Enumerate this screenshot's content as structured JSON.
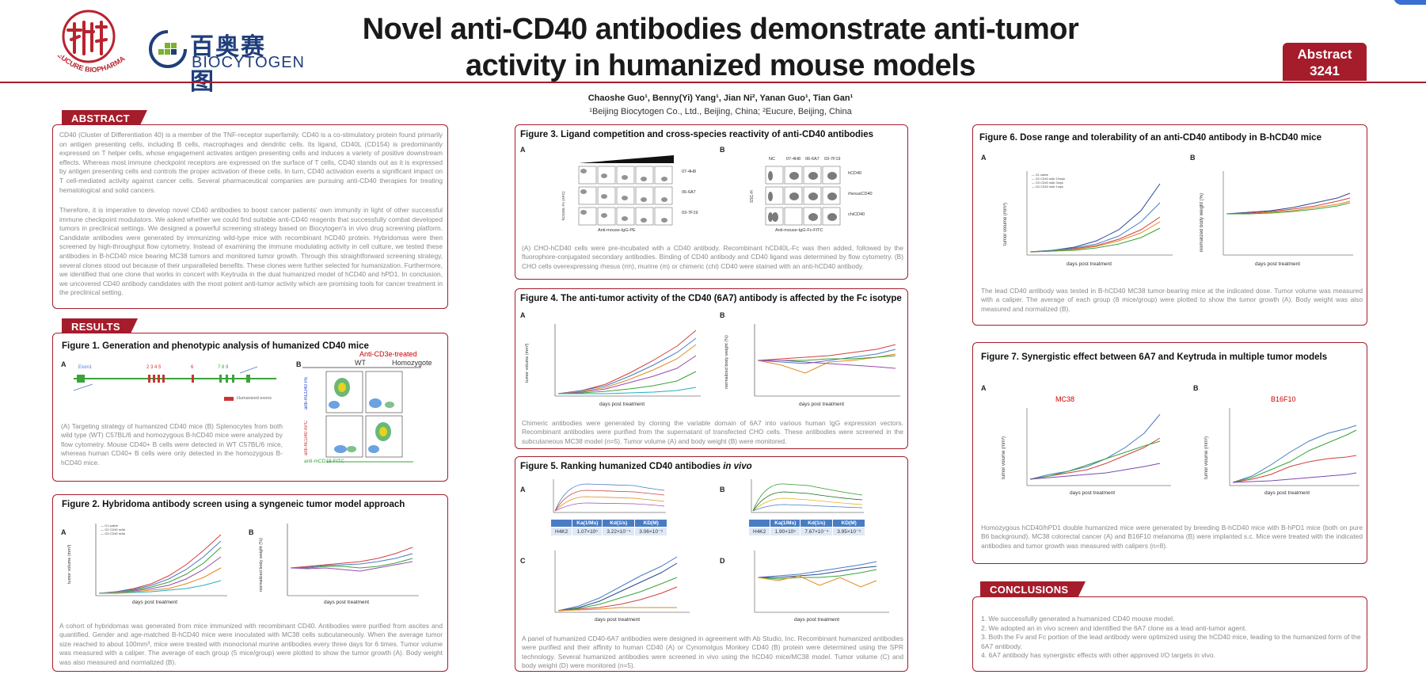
{
  "header": {
    "eucure_text": "EUCURE BIOPHARMA",
    "biocytogen_cn": "百奥赛图",
    "biocytogen_en": "BIOCYTOGEN",
    "title_line1": "Novel anti-CD40 antibodies demonstrate anti-tumor",
    "title_line2": "activity  in humanized mouse models",
    "abstract_label": "Abstract",
    "abstract_number": "3241",
    "authors": "Chaoshe Guo¹, Benny(Yi) Yang¹, Jian Ni², Yanan Guo¹, Tian Gan¹",
    "affiliations": "¹Beijing Biocytogen Co., Ltd., Beijing, China; ²Eucure, Beijing, China"
  },
  "abstract": {
    "tab": "ABSTRACT",
    "para1": "CD40 (Cluster of Differentiation 40) is a member of the TNF-receptor superfamily. CD40 is a co-stimulatory protein found primarily on antigen presenting cells, including B cells, macrophages and dendritic cells. Its ligand, CD40L (CD154) is predominantly expressed on T helper cells, whose engagement activates antigen presenting cells and induces a variety of positive downstream effects. Whereas most immune checkpoint receptors are expressed on the surface of T cells, CD40 stands out as it is expressed by antigen presenting cells and controls the proper activation of these cells. In turn, CD40 activation exerts a significant impact on T cell-mediated activity against cancer cells. Several pharmaceutical companies are pursuing anti-CD40 therapies for treating hematological and solid cancers.",
    "para2": "Therefore, it is imperative to develop novel CD40 antibodies to boost cancer patients' own immunity in light of other successful immune checkpoint modulators. We asked whether we could find suitable anti-CD40 reagents that successfully combat developed tumors in preclinical settings. We designed a powerful screening strategy based on Biocytogen's in vivo drug screening platform. Candidate antibodies were generated by immunizing wild-type mice with recombinant hCD40 protein. Hybridomas were then screened by high-throughput flow cytometry. Instead of examining the immune modulating activity in cell culture, we tested these antibodies in B-hCD40 mice bearing MC38 tumors and monitored tumor growth. Through this straightforward screening strategy, several clones stood out because of their unparalleled benefits. These clones were further selected for humanization. Furthermore, we identified that one clone that works in concert with Keytruda in the dual humanized model of hCD40 and hPD1. In conclusion, we uncovered CD40 antibody candidates with the most potent anti-tumor activity which are promising tools for cancer treatment in the preclinical setting."
  },
  "results": {
    "tab": "RESULTS"
  },
  "fig1": {
    "title": "Figure 1. Generation and phenotypic analysis of humanized CD40 mice",
    "label_a": "A",
    "label_b": "B",
    "exon1": "Exon1",
    "exons": "2 3 4 5",
    "exon6": "6",
    "exons2": "7 8 9",
    "legend": "Humanized exons",
    "treated": "Anti-CD3e-treated",
    "wt": "WT",
    "homo": "Homozygote",
    "y1": "anti-mCD40 PE",
    "y2": "anti-hCD40 APC",
    "x": "anti-mCD19 FITC",
    "caption": "(A) Targeting strategy of humanized CD40 mice (B) Splenocytes from both wild type (WT) C57BL/6 and homozygous B-hCD40 mice were analyzed by flow cytometry. Mouse CD40+ B cells were detected in WT C57BL/6 mice, whereas human CD40+ B cells were only detected in the homozygous B-hCD40 mice."
  },
  "fig2": {
    "title": "Figure 2. Hybridoma antibody screen using a syngeneic tumor model approach",
    "label_a": "A",
    "label_b": "B",
    "xlabel": "days post treatment",
    "ylabel_a": "tumor volume (mm³)",
    "ylabel_b": "normalized body weight (%)",
    "caption": "A cohort of hybridomas was generated from mice immunized with recombinant CD40. Antibodies were purified from ascites and quantified. Gender and age-matched B-hCD40 mice were inoculated with MC38 cells subcutaneously. When the average tumor size reached to about 100mm³, mice were treated with monoclonal murine antibodies every three days for 6 times. Tumor volume was measured with a caliper. The average of each group (5 mice/group) were plotted to show the tumor growth (A). Body weight was also measured and normalized (B)."
  },
  "fig3": {
    "title": "Figure 3. Ligand competition and cross-species reactivity of anti-CD40 antibodies",
    "label_a": "A",
    "label_b": "B",
    "xlabel_a": "Anti-mouse-IgG-PE",
    "xlabel_b": "Anti-mouse-IgG-Fc-FITC",
    "ylabel_a": "hCD40L-Fc (APC)",
    "ylabel_b": "SSC-H",
    "rows": [
      "07-4H8",
      "06-6A7",
      "03-7F19"
    ],
    "cols": [
      "NC",
      "07-4H8",
      "06-6A7",
      "03-7F19"
    ],
    "species": [
      "hCD40",
      "rhesusCD40",
      "chiCD40"
    ],
    "caption": "(A) CHO-hCD40 cells were pre-incubated with a CD40 antibody. Recombinant hCD40L-Fc was then added, followed by the fluorophore-conjugated secondary antibodies. Binding of CD40 antibody and CD40 ligand was determined by flow cytometry. (B) CHO cells overexpressing rhesus (rm), murine (m) or chimeric (chi) CD40 were stained with an anti-hCD40 antibody."
  },
  "fig4": {
    "title": "Figure 4. The anti-tumor activity of the CD40 (6A7) antibody is affected by the Fc isotype",
    "label_a": "A",
    "label_b": "B",
    "xlabel": "days post treatment",
    "ylabel_a": "tumor volume (mm³)",
    "ylabel_b": "normalized body weight (%)",
    "caption": "Chimeric antibodies were generated by cloning the variable domain of 6A7 into various human IgG expression vectors. Recombinant antibodies were purified from the supernatant of transfected CHO cells. These antibodies were screened in the subcutaneous MC38 model (n=5). Tumor volume (A) and body weight (B) were monitored."
  },
  "fig5": {
    "title_main": "Figure 5. Ranking humanized CD40 antibodies ",
    "title_em": "in vivo",
    "label_a": "A",
    "label_b": "B",
    "label_c": "C",
    "label_d": "D",
    "table_a": {
      "headers": [
        "",
        "Ka(1/Ms)",
        "Kd(1/s)",
        "KD(M)"
      ],
      "row": [
        "H4K2",
        "1.07×10⁵",
        "3.22×10⁻⁴",
        "3.06×10⁻⁹"
      ]
    },
    "table_b": {
      "headers": [
        "",
        "Ka(1/Ms)",
        "Kd(1/s)",
        "KD(M)"
      ],
      "row": [
        "H4K2",
        "1.90×10⁵",
        "7.67×10⁻⁴",
        "3.95×10⁻⁹"
      ]
    },
    "xlabel": "days post treatment",
    "caption": "A panel of humanized CD40-6A7 antibodies were designed in agreement with Ab Studio, Inc. Recombinant humanized antibodies were purified and their affinity to human CD40 (A) or Cynomolgus Monkey CD40 (B) protein were determined using the SPR technology. Several humanized antibodies were screened in vivo using the hCD40 mice/MC38 model. Tumor volume (C) and body weight (D) were monitored (n=5)."
  },
  "fig6": {
    "title": "Figure 6. Dose range and tolerability of an anti-CD40 antibody in B-hCD40 mice",
    "label_a": "A",
    "label_b": "B",
    "xlabel": "days post treatment",
    "ylabel_a": "tumor volume (mm³)",
    "ylabel_b": "normalized body weight (%)",
    "caption": "The lead CD40 antibody was tested in B-hCD40 MC38 tumor-bearing mice at the indicated dose. Tumor volume was measured with a caliper. The average of each group (8 mice/group) were plotted to show the tumor growth (A). Body weight was also measured and normalized (B)."
  },
  "fig7": {
    "title": "Figure 7. Synergistic effect between 6A7 and Keytruda in multiple tumor models",
    "label_a": "A",
    "label_b": "B",
    "model_a": "MC38",
    "model_b": "B16F10",
    "xlabel": "days post treatment",
    "ylabel": "tumor volume (mm³)",
    "caption": "Homozygous hCD40/hPD1 double humanized mice were generated by breeding B-hCD40 mice with B-hPD1 mice (both on pure B6 background). MC38 colorectal cancer (A) and B16F10 melanoma (B) were implanted s.c. Mice were treated with the indicated antibodies and tumor growth was measured with calipers (n=8)."
  },
  "conclusions": {
    "tab": "CONCLUSIONS",
    "items": [
      "1. We successfully generated a humanized CD40 mouse model.",
      "2. We adopted an in vivo screen and identified the 6A7 clone as a lead anti-tumor agent.",
      "3. Both the Fv and Fc portion of the lead antibody were optimized using the hCD40 mice, leading to the humanized form of the 6A7 antibody.",
      "4. 6A7 antibody has synergistic effects with other approved I/O targets in vivo."
    ]
  },
  "colors": {
    "brand_red": "#a51c2b",
    "biocytogen_blue": "#1f3e7a",
    "biocytogen_green": "#7ab32e"
  }
}
